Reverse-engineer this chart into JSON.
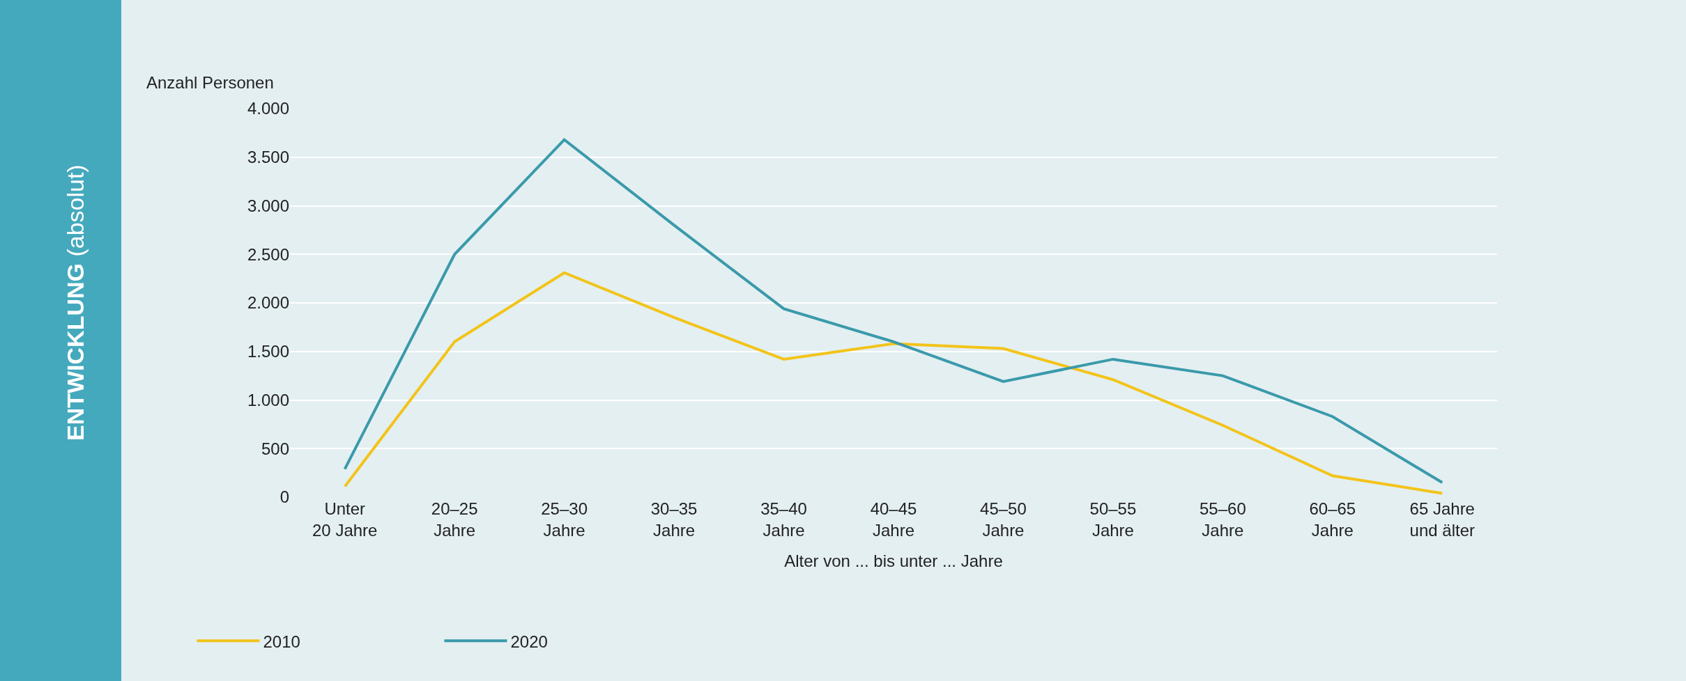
{
  "chart_data": {
    "type": "line",
    "title": "ENTWICKLUNG (absolut)",
    "ylabel": "Anzahl Personen",
    "xlabel": "Alter von ... bis unter ... Jahre",
    "categories": [
      "Unter\n20 Jahre",
      "20–25\nJahre",
      "25–30\nJahre",
      "30–35\nJahre",
      "35–40\nJahre",
      "40–45\nJahre",
      "45–50\nJahre",
      "50–55\nJahre",
      "55–60\nJahre",
      "60–65\nJahre",
      "65 Jahre\nund älter"
    ],
    "series": [
      {
        "name": "2010",
        "color": "#f2c41a",
        "values": [
          110,
          1600,
          2310,
          1850,
          1420,
          1580,
          1530,
          1210,
          740,
          220,
          40
        ]
      },
      {
        "name": "2020",
        "color": "#3a9aaa",
        "values": [
          290,
          2500,
          3680,
          2800,
          1940,
          1600,
          1190,
          1420,
          1250,
          830,
          150
        ]
      }
    ],
    "ylim": [
      0,
      4000
    ],
    "yticks": [
      {
        "value": 0,
        "label": "0"
      },
      {
        "value": 500,
        "label": "500"
      },
      {
        "value": 1000,
        "label": "1.000"
      },
      {
        "value": 1500,
        "label": "1.500"
      },
      {
        "value": 2000,
        "label": "2.000"
      },
      {
        "value": 2500,
        "label": "2.500"
      },
      {
        "value": 3000,
        "label": "3.000"
      },
      {
        "value": 3500,
        "label": "3.500"
      },
      {
        "value": 4000,
        "label": "4.000"
      }
    ],
    "grid": "y",
    "legend": "bottom left",
    "marker": "none",
    "line_style": "solid"
  }
}
